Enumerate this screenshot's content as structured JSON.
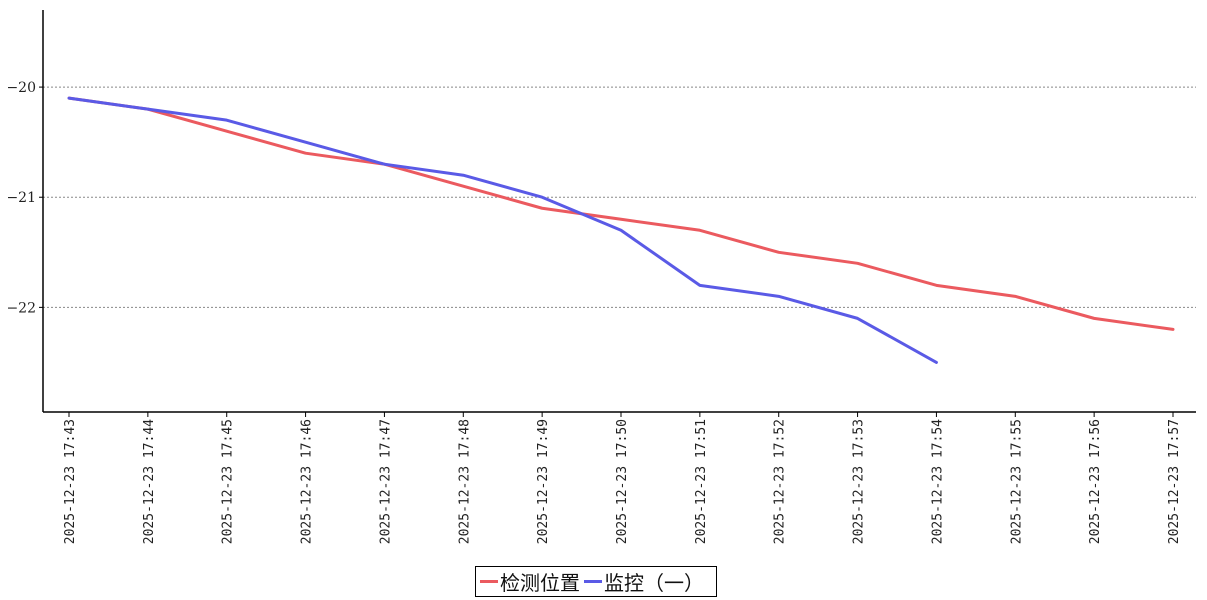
{
  "chart_data": {
    "type": "line",
    "title": "",
    "xlabel": "",
    "ylabel": "",
    "x": [
      "2025-12-23 17:43",
      "2025-12-23 17:44",
      "2025-12-23 17:45",
      "2025-12-23 17:46",
      "2025-12-23 17:47",
      "2025-12-23 17:48",
      "2025-12-23 17:49",
      "2025-12-23 17:50",
      "2025-12-23 17:51",
      "2025-12-23 17:52",
      "2025-12-23 17:53",
      "2025-12-23 17:54",
      "2025-12-23 17:55",
      "2025-12-23 17:56",
      "2025-12-23 17:57"
    ],
    "y_ticks": [
      -20,
      -21,
      -22
    ],
    "ylim": [
      -22.95,
      -19.3
    ],
    "grid": "horizontal dotted",
    "legend_position": "bottom-center",
    "series": [
      {
        "name": "检测位置",
        "color": "#eb5a5f",
        "values": [
          -20.1,
          -20.2,
          -20.4,
          -20.6,
          -20.7,
          -20.9,
          -21.1,
          -21.2,
          -21.3,
          -21.5,
          -21.6,
          -21.8,
          -21.9,
          -22.1,
          -22.2
        ]
      },
      {
        "name": "监控（一）",
        "color": "#5a5ae6",
        "values": [
          -20.1,
          -20.2,
          -20.3,
          -20.5,
          -20.7,
          -20.8,
          -21.0,
          -21.3,
          -21.8,
          -21.9,
          -22.1,
          -22.5,
          null,
          null,
          null
        ]
      }
    ]
  }
}
